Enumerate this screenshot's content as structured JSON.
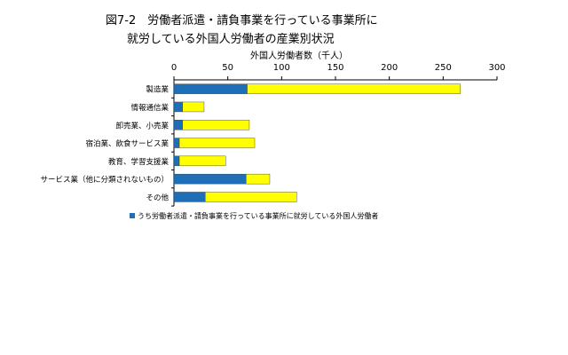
{
  "chart_data": {
    "type": "bar",
    "orientation": "horizontal",
    "stacked": true,
    "title_line1": "図7-2　労働者派遣・請負事業を行っている事業所に",
    "title_line2": "就労している外国人労働者の産業別状況",
    "xlabel": "外国人労働者数（千人）",
    "ylabel": "",
    "xlim": [
      0,
      300
    ],
    "x_ticks": [
      "0",
      "50",
      "100",
      "150",
      "200",
      "250",
      "300"
    ],
    "grid": false,
    "legend_position": "bottom-left",
    "categories": [
      "製造業",
      "情報通信業",
      "卸売業、小売業",
      "宿泊業、飲食サービス業",
      "教育、学習支援業",
      "サービス業（他に分類されないもの）",
      "その他"
    ],
    "series": [
      {
        "name": "うち労働者派遣・請負事業を行っている事業所に就労している外国人労働者",
        "color": "#1f6fb8",
        "values": [
          68,
          8,
          8,
          5,
          5,
          67,
          29
        ]
      },
      {
        "color": "#ffff00",
        "values": [
          198,
          20,
          62,
          70,
          43,
          22,
          85
        ]
      }
    ]
  }
}
